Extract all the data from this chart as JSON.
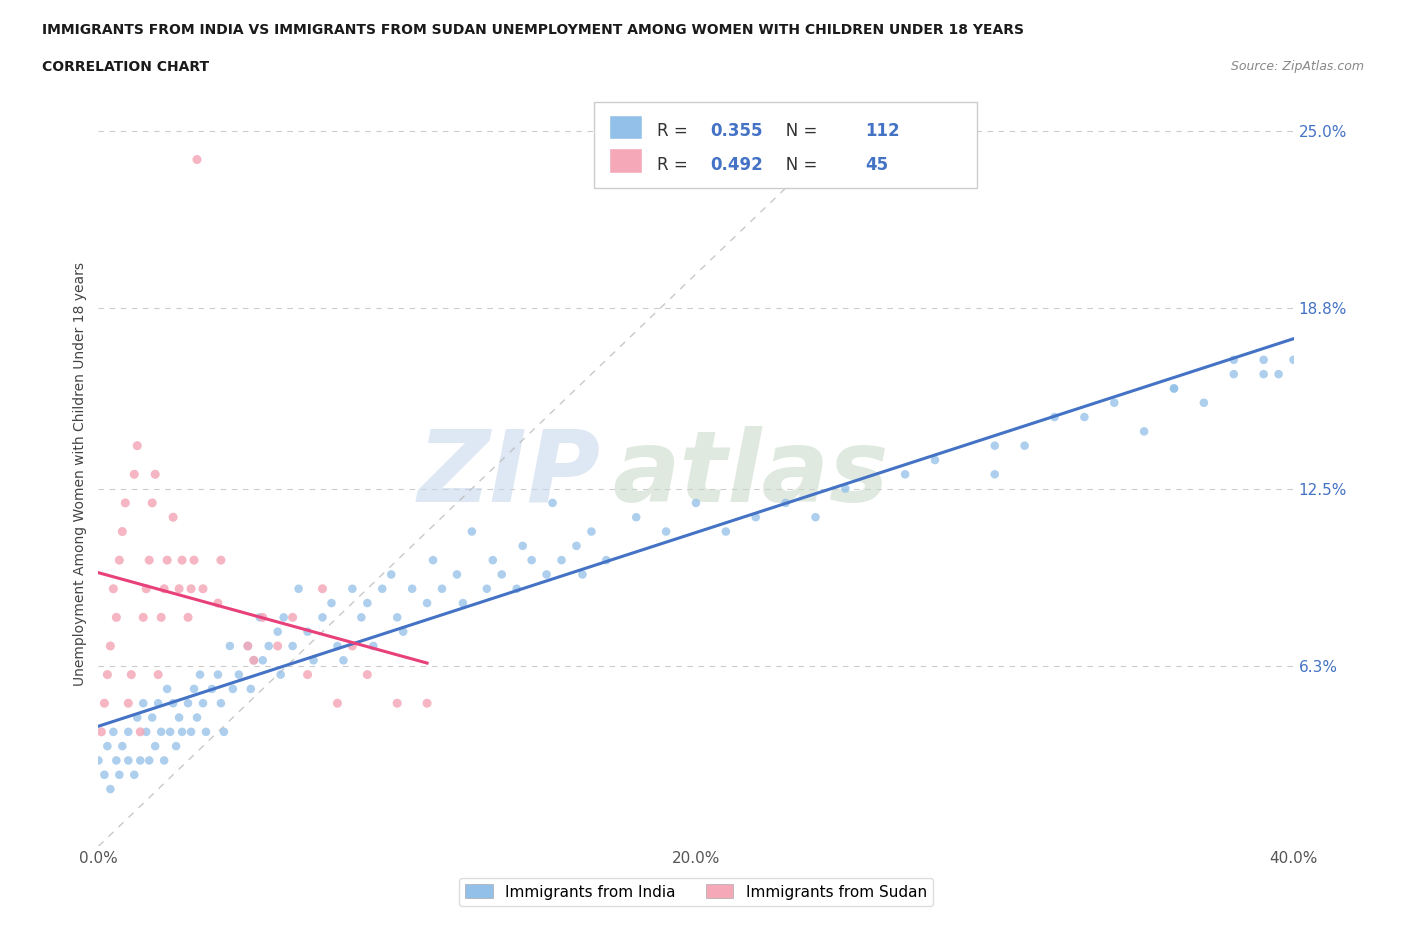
{
  "title_line1": "IMMIGRANTS FROM INDIA VS IMMIGRANTS FROM SUDAN UNEMPLOYMENT AMONG WOMEN WITH CHILDREN UNDER 18 YEARS",
  "title_line2": "CORRELATION CHART",
  "source_text": "Source: ZipAtlas.com",
  "ylabel_text": "Unemployment Among Women with Children Under 18 years",
  "xlim": [
    0.0,
    0.4
  ],
  "ylim": [
    0.0,
    0.26
  ],
  "yticks": [
    0.0,
    0.063,
    0.125,
    0.188,
    0.25
  ],
  "ytick_labels": [
    "",
    "6.3%",
    "12.5%",
    "18.8%",
    "25.0%"
  ],
  "xticks": [
    0.0,
    0.1,
    0.2,
    0.3,
    0.4
  ],
  "xtick_labels": [
    "0.0%",
    "",
    "20.0%",
    "",
    "40.0%"
  ],
  "india_color": "#92c0e8",
  "sudan_color": "#f4a8b8",
  "india_line_color": "#4472c4",
  "sudan_line_color": "#e8407a",
  "india_r": 0.355,
  "india_n": 112,
  "sudan_r": 0.492,
  "sudan_n": 45,
  "tick_color": "#4472c4",
  "india_scatter_x": [
    0.0,
    0.002,
    0.003,
    0.004,
    0.005,
    0.006,
    0.007,
    0.008,
    0.01,
    0.01,
    0.012,
    0.013,
    0.014,
    0.015,
    0.016,
    0.017,
    0.018,
    0.019,
    0.02,
    0.021,
    0.022,
    0.023,
    0.024,
    0.025,
    0.026,
    0.027,
    0.028,
    0.03,
    0.031,
    0.032,
    0.033,
    0.034,
    0.035,
    0.036,
    0.038,
    0.04,
    0.041,
    0.042,
    0.044,
    0.045,
    0.047,
    0.05,
    0.051,
    0.052,
    0.054,
    0.055,
    0.057,
    0.06,
    0.061,
    0.062,
    0.065,
    0.067,
    0.07,
    0.072,
    0.075,
    0.078,
    0.08,
    0.082,
    0.085,
    0.088,
    0.09,
    0.092,
    0.095,
    0.098,
    0.1,
    0.102,
    0.105,
    0.11,
    0.112,
    0.115,
    0.12,
    0.122,
    0.125,
    0.13,
    0.132,
    0.135,
    0.14,
    0.142,
    0.145,
    0.15,
    0.152,
    0.155,
    0.16,
    0.162,
    0.165,
    0.17,
    0.18,
    0.19,
    0.2,
    0.21,
    0.22,
    0.23,
    0.24,
    0.25,
    0.27,
    0.28,
    0.3,
    0.32,
    0.34,
    0.36,
    0.37,
    0.38,
    0.39,
    0.395,
    0.3,
    0.31,
    0.33,
    0.35,
    0.36,
    0.38,
    0.39,
    0.4
  ],
  "india_scatter_y": [
    0.03,
    0.025,
    0.035,
    0.02,
    0.04,
    0.03,
    0.025,
    0.035,
    0.04,
    0.03,
    0.025,
    0.045,
    0.03,
    0.05,
    0.04,
    0.03,
    0.045,
    0.035,
    0.05,
    0.04,
    0.03,
    0.055,
    0.04,
    0.05,
    0.035,
    0.045,
    0.04,
    0.05,
    0.04,
    0.055,
    0.045,
    0.06,
    0.05,
    0.04,
    0.055,
    0.06,
    0.05,
    0.04,
    0.07,
    0.055,
    0.06,
    0.07,
    0.055,
    0.065,
    0.08,
    0.065,
    0.07,
    0.075,
    0.06,
    0.08,
    0.07,
    0.09,
    0.075,
    0.065,
    0.08,
    0.085,
    0.07,
    0.065,
    0.09,
    0.08,
    0.085,
    0.07,
    0.09,
    0.095,
    0.08,
    0.075,
    0.09,
    0.085,
    0.1,
    0.09,
    0.095,
    0.085,
    0.11,
    0.09,
    0.1,
    0.095,
    0.09,
    0.105,
    0.1,
    0.095,
    0.12,
    0.1,
    0.105,
    0.095,
    0.11,
    0.1,
    0.115,
    0.11,
    0.12,
    0.11,
    0.115,
    0.12,
    0.115,
    0.125,
    0.13,
    0.135,
    0.14,
    0.15,
    0.155,
    0.16,
    0.155,
    0.165,
    0.17,
    0.165,
    0.13,
    0.14,
    0.15,
    0.145,
    0.16,
    0.17,
    0.165,
    0.17
  ],
  "sudan_scatter_x": [
    0.001,
    0.002,
    0.003,
    0.004,
    0.005,
    0.006,
    0.007,
    0.008,
    0.009,
    0.01,
    0.011,
    0.012,
    0.013,
    0.014,
    0.015,
    0.016,
    0.017,
    0.018,
    0.019,
    0.02,
    0.021,
    0.022,
    0.023,
    0.025,
    0.027,
    0.028,
    0.03,
    0.031,
    0.032,
    0.033,
    0.035,
    0.04,
    0.041,
    0.05,
    0.052,
    0.055,
    0.06,
    0.065,
    0.07,
    0.075,
    0.08,
    0.085,
    0.09,
    0.1,
    0.11
  ],
  "sudan_scatter_y": [
    0.04,
    0.05,
    0.06,
    0.07,
    0.09,
    0.08,
    0.1,
    0.11,
    0.12,
    0.05,
    0.06,
    0.13,
    0.14,
    0.04,
    0.08,
    0.09,
    0.1,
    0.12,
    0.13,
    0.06,
    0.08,
    0.09,
    0.1,
    0.115,
    0.09,
    0.1,
    0.08,
    0.09,
    0.1,
    0.24,
    0.09,
    0.085,
    0.1,
    0.07,
    0.065,
    0.08,
    0.07,
    0.08,
    0.06,
    0.09,
    0.05,
    0.07,
    0.06,
    0.05,
    0.05
  ]
}
